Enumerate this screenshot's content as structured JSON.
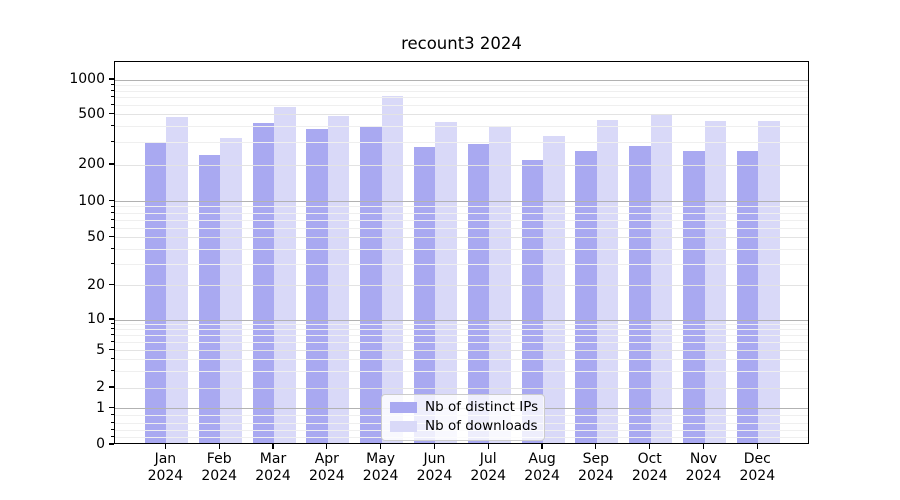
{
  "title": "recount3 2024",
  "chart_data": {
    "type": "bar",
    "title": "recount3 2024",
    "xlabel": "",
    "ylabel": "",
    "yscale": "symlog",
    "grid": "both",
    "legend_position": "lower center",
    "ylim": [
      0,
      1400
    ],
    "categories": [
      "Jan",
      "Feb",
      "Mar",
      "Apr",
      "May",
      "Jun",
      "Jul",
      "Aug",
      "Sep",
      "Oct",
      "Nov",
      "Dec"
    ],
    "year": "2024",
    "yticks": [
      0,
      1,
      2,
      5,
      10,
      20,
      50,
      100,
      200,
      500,
      1000
    ],
    "ytick_labels": [
      "0",
      "1",
      "2",
      "5",
      "10",
      "20",
      "50",
      "100",
      "200",
      "500",
      "1000"
    ],
    "series": [
      {
        "name": "Nb of distinct IPs",
        "color": "#a9a9f1",
        "values": [
          290,
          230,
          410,
          370,
          392,
          268,
          283,
          210,
          248,
          273,
          247,
          247
        ]
      },
      {
        "name": "Nb of downloads",
        "color": "#d9d9f8",
        "values": [
          459,
          316,
          563,
          473,
          694,
          418,
          391,
          325,
          437,
          475,
          428,
          428
        ]
      }
    ]
  },
  "colors": {
    "grid_major": "#b2b2b2",
    "grid_sub": "#e3e3e3",
    "grid_minor": "#efefef",
    "axis": "#000000",
    "legend_border": "#cccccc"
  }
}
